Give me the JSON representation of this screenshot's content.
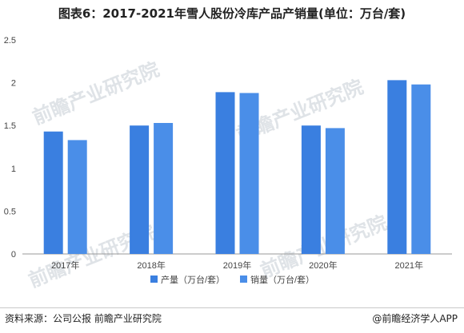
{
  "title": "图表6：2017-2021年雪人股份冷库产品产销量(单位：万台/套)",
  "source": "资料来源：公司公报 前瞻产业研究院",
  "brand": "@前瞻经济学人APP",
  "watermark": "前瞻产业研究院",
  "colors": {
    "series1": "#3a7fe0",
    "series2": "#4a8ee8",
    "axis": "#999999",
    "text": "#444444"
  },
  "chart_data": {
    "type": "bar",
    "categories": [
      "2017年",
      "2018年",
      "2019年",
      "2020年",
      "2021年"
    ],
    "series": [
      {
        "name": "产量（万台/套）",
        "values": [
          1.43,
          1.5,
          1.89,
          1.5,
          2.03
        ]
      },
      {
        "name": "销量（万台/套）",
        "values": [
          1.33,
          1.53,
          1.88,
          1.47,
          1.98
        ]
      }
    ],
    "ylim": [
      0,
      2.5
    ],
    "yticks": [
      "0",
      "0.5",
      "1",
      "1.5",
      "2",
      "2.5"
    ],
    "grid": false,
    "legend_position": "bottom"
  }
}
